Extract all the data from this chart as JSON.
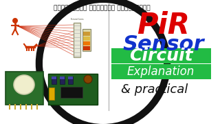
{
  "bg_color": "#ffffff",
  "circle_color": "#111111",
  "title_tamil": "நீங்களும் சர்வீஸ் செய்யலாம்",
  "pir_color": "#dd0000",
  "sensor_color": "#1133cc",
  "circuit_bg": "#22bb44",
  "circuit_color": "#ffffff",
  "explanation_color": "#ffffff",
  "practical_color": "#111111",
  "text_pir": "PiR",
  "text_sensor": "Sensor",
  "text_circuit": "Circuit",
  "text_explanation": "Explanation",
  "text_practical": "& practical",
  "divider_color": "#aaaaaa",
  "person_color": "#cc3300",
  "dog_color": "#cc3300",
  "ray_color": "#cc2200",
  "pcb_color": "#2a6e2a",
  "board_color": "#1e5c1e",
  "pin_color": "#ccaa33"
}
